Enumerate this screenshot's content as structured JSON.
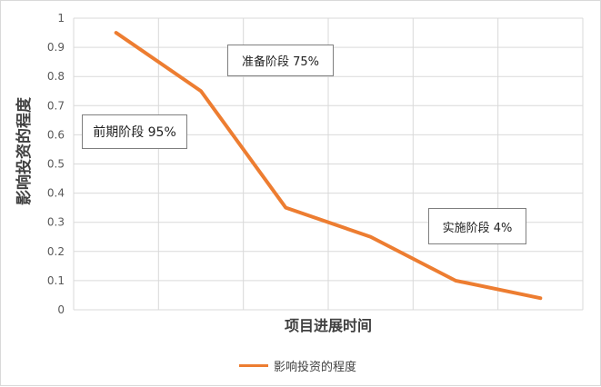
{
  "chart_data": {
    "type": "line",
    "title": "",
    "xlabel": "项目进展时间",
    "ylabel": "影响投资的程度",
    "ylim": [
      0,
      1
    ],
    "yticks": [
      "0",
      "0.1",
      "0.2",
      "0.3",
      "0.4",
      "0.5",
      "0.6",
      "0.7",
      "0.8",
      "0.9",
      "1"
    ],
    "grid": true,
    "legend_position": "bottom",
    "series": [
      {
        "name": "影响投资的程度",
        "color": "#ed7d31",
        "values": [
          0.95,
          0.75,
          0.35,
          0.25,
          0.1,
          0.04
        ]
      }
    ],
    "annotations": [
      "前期阶段 95%",
      "准备阶段 75%",
      "实施阶段 4%"
    ]
  }
}
